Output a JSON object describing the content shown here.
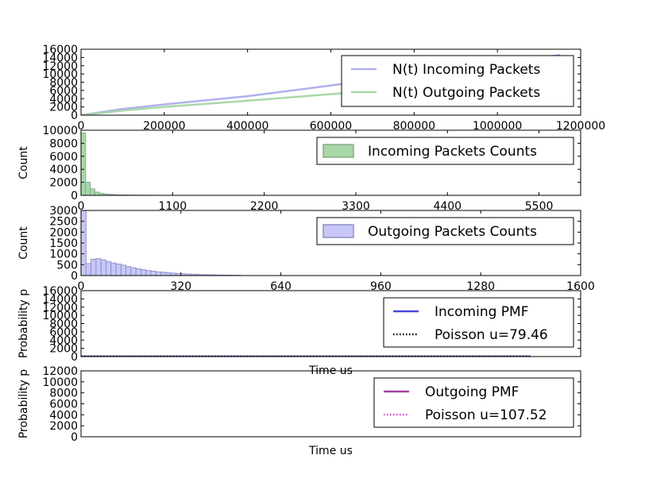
{
  "chart_data": [
    {
      "type": "line",
      "xlim": [
        0,
        1200000
      ],
      "ylim": [
        0,
        16000
      ],
      "x_ticks": [
        0,
        200000,
        400000,
        600000,
        800000,
        1000000,
        1200000
      ],
      "x_tick_labels": [
        "0",
        "200000",
        "400000",
        "600000",
        "800000",
        "1000000",
        "1200000"
      ],
      "y_ticks": [
        0,
        2000,
        4000,
        6000,
        8000,
        10000,
        12000,
        14000,
        16000
      ],
      "y_tick_labels": [
        "0",
        "2000",
        "4000",
        "6000",
        "8000",
        "10000",
        "12000",
        "14000",
        "16000"
      ],
      "legend_position": "top-right",
      "series": [
        {
          "name": "N(t) Incoming Packets",
          "color": "#b0b0ee",
          "x": [
            0,
            100000,
            200000,
            400000,
            600000,
            800000,
            1000000,
            1150000
          ],
          "y": [
            0,
            1500,
            2600,
            4600,
            7200,
            9800,
            12400,
            14600
          ]
        },
        {
          "name": "N(t) Outgoing Packets",
          "color": "#a8d8a8",
          "x": [
            0,
            100000,
            200000,
            400000,
            600000,
            700000
          ],
          "y": [
            0,
            1100,
            2000,
            3500,
            5100,
            5900
          ]
        }
      ]
    },
    {
      "type": "bar",
      "ylabel": "Count",
      "xlim": [
        0,
        6000
      ],
      "ylim": [
        0,
        10000
      ],
      "x_ticks": [
        0,
        1100,
        2200,
        3300,
        4400,
        5500
      ],
      "x_tick_labels": [
        "0",
        "1100",
        "2200",
        "3300",
        "4400",
        "5500"
      ],
      "y_ticks": [
        0,
        2000,
        4000,
        6000,
        8000,
        10000
      ],
      "y_tick_labels": [
        "0",
        "2000",
        "4000",
        "6000",
        "8000",
        "10000"
      ],
      "legend_position": "top-right",
      "bin_width": 55,
      "series": [
        {
          "name": "Incoming Packets Counts",
          "color": "#a8d8a8",
          "edge": "#8aa88a",
          "values": [
            9600,
            2000,
            1000,
            500,
            300,
            200,
            150,
            100,
            80,
            60,
            50,
            40,
            30,
            30,
            20,
            20,
            15,
            10
          ]
        }
      ]
    },
    {
      "type": "bar",
      "ylabel": "Count",
      "xlim": [
        0,
        1600
      ],
      "ylim": [
        0,
        3000
      ],
      "x_ticks": [
        0,
        320,
        640,
        960,
        1280,
        1600
      ],
      "x_tick_labels": [
        "0",
        "320",
        "640",
        "960",
        "1280",
        "1600"
      ],
      "y_ticks": [
        0,
        500,
        1000,
        1500,
        2000,
        2500,
        3000
      ],
      "y_tick_labels": [
        "0",
        "500",
        "1000",
        "1500",
        "2000",
        "2500",
        "3000"
      ],
      "legend_position": "top-right",
      "bin_width": 16,
      "series": [
        {
          "name": "Outgoing Packets Counts",
          "color": "#c8c8f8",
          "edge": "#9090c8",
          "values": [
            3000,
            550,
            750,
            780,
            720,
            640,
            580,
            530,
            480,
            410,
            360,
            310,
            270,
            230,
            200,
            170,
            150,
            130,
            110,
            100,
            80,
            70,
            60,
            50,
            40,
            35,
            30,
            25,
            20,
            18,
            15,
            12
          ]
        }
      ]
    },
    {
      "type": "line",
      "xlabel": "Time us",
      "ylabel": "Probability p",
      "xlim": [
        0,
        1
      ],
      "ylim": [
        0,
        16000
      ],
      "y_ticks": [
        0,
        2000,
        4000,
        6000,
        8000,
        10000,
        12000,
        14000,
        16000
      ],
      "y_tick_labels": [
        "0",
        "2000",
        "4000",
        "6000",
        "8000",
        "10000",
        "12000",
        "14000",
        "16000"
      ],
      "legend_position": "top-right",
      "series": [
        {
          "name": "Incoming PMF",
          "color": "#4848d8",
          "style": "solid",
          "x": [
            0,
            0.9
          ],
          "y": [
            0,
            0
          ]
        },
        {
          "name": "Poisson u=79.46",
          "color": "#000000",
          "style": "dotted",
          "x": [
            0,
            0.9
          ],
          "y": [
            0,
            0
          ]
        }
      ]
    },
    {
      "type": "line",
      "xlabel": "Time us",
      "ylabel": "Probability p",
      "xlim": [
        0,
        1
      ],
      "ylim": [
        0,
        12000
      ],
      "y_ticks": [
        0,
        2000,
        4000,
        6000,
        8000,
        10000,
        12000
      ],
      "y_tick_labels": [
        "0",
        "2000",
        "4000",
        "6000",
        "8000",
        "10000",
        "12000"
      ],
      "legend_position": "top-right",
      "series": [
        {
          "name": "Outgoing PMF",
          "color": "#a040a0",
          "style": "solid",
          "x": [],
          "y": []
        },
        {
          "name": "Poisson u=107.52",
          "color": "#e040e0",
          "style": "dotted",
          "x": [],
          "y": []
        }
      ]
    }
  ]
}
